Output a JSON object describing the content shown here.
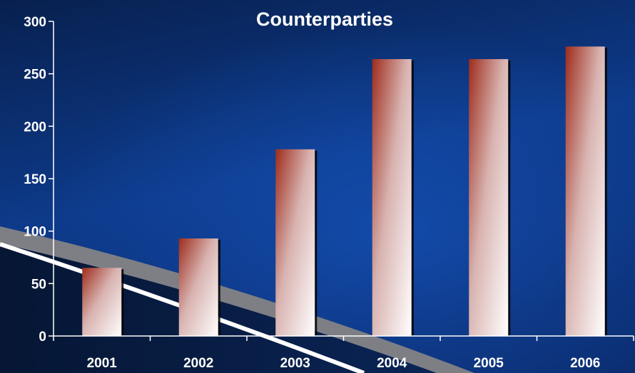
{
  "chart_data": {
    "type": "bar",
    "title": "Counterparties",
    "xlabel": "",
    "ylabel": "",
    "categories": [
      "2001",
      "2002",
      "2003",
      "2004",
      "2005",
      "2006"
    ],
    "values": [
      65,
      93,
      178,
      264,
      264,
      276
    ],
    "ylim": [
      0,
      300
    ],
    "yticks": [
      0,
      50,
      100,
      150,
      200,
      250,
      300
    ],
    "grid": false,
    "legend": "none"
  },
  "colors": {
    "background_top": "#08204f",
    "background_mid": "#0d3a8a",
    "background_bottom": "#0a1f4c",
    "bar_dark": "#9e2c1c",
    "bar_light": "#ffffff",
    "axis": "#ffffff",
    "text": "#ffffff",
    "swoosh_gray": "#7d7f85",
    "swoosh_white": "#ffffff"
  }
}
